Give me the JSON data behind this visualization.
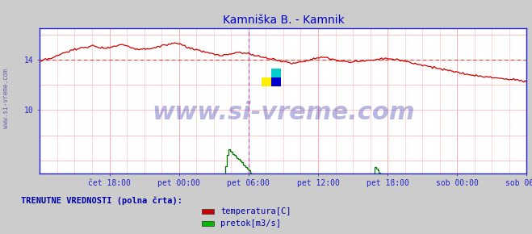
{
  "title": "Kamniška B. - Kamnik",
  "title_color": "#0000cc",
  "bg_color": "#d8d8d8",
  "plot_bg_color": "#ffffff",
  "xlabel_ticks": [
    "čet 18:00",
    "pet 00:00",
    "pet 06:00",
    "pet 12:00",
    "pet 18:00",
    "sob 00:00",
    "sob 06:00"
  ],
  "xtick_positions": [
    48,
    96,
    144,
    192,
    240,
    288,
    336
  ],
  "yticks": [
    10,
    14
  ],
  "ylim": [
    5.0,
    16.5
  ],
  "xlim": [
    0,
    336
  ],
  "hgrid_color": "#ffaaaa",
  "vgrid_color": "#ffcccc",
  "watermark": "www.si-vreme.com",
  "watermark_color": "#3333aa",
  "watermark_alpha": 0.35,
  "sidebar_text": "www.si-vreme.com",
  "sidebar_color": "#6666aa",
  "legend_title": "TRENUTNE VREDNOSTI (polna črta):",
  "legend_title_color": "#0000aa",
  "legend_items": [
    "temperatura[C]",
    "pretok[m3/s]"
  ],
  "legend_colors": [
    "#cc0000",
    "#00bb00"
  ],
  "temp_color": "#cc0000",
  "flow_color": "#007700",
  "temp_hline": 14.0,
  "temp_hline_color": "#dd4444",
  "flow_hline": 2.8,
  "flow_hline_color": "#00bb00",
  "vline1_x": 144,
  "vline2_x": 336,
  "vline_color": "#cc44cc",
  "axis_color": "#2222cc",
  "tick_color": "#2222cc",
  "spine_color": "#2222cc",
  "n_points": 337,
  "temp_data": [
    13.8,
    14.0,
    14.1,
    14.3,
    14.5,
    14.7,
    14.8,
    14.9,
    15.0,
    15.1,
    15.0,
    14.9,
    15.0,
    15.1,
    15.2,
    15.1,
    14.9,
    14.8,
    14.85,
    14.9,
    15.0,
    15.1,
    15.2,
    15.3,
    15.2,
    15.0,
    14.85,
    14.7,
    14.6,
    14.5,
    14.4,
    14.3,
    14.4,
    14.5,
    14.6,
    14.5,
    14.4,
    14.3,
    14.2,
    14.1,
    14.0,
    13.9,
    13.8,
    13.7,
    13.8,
    13.9,
    14.0,
    14.1,
    14.2,
    14.1,
    14.0,
    13.9,
    13.85,
    13.8,
    13.85,
    13.9,
    13.95,
    14.0,
    14.05,
    14.1,
    14.05,
    14.0,
    13.9,
    13.8,
    13.7,
    13.6,
    13.5,
    13.4,
    13.3,
    13.2,
    13.1,
    13.0,
    12.9,
    12.8,
    12.75,
    12.7,
    12.65,
    12.6,
    12.55,
    12.5,
    12.45,
    12.4,
    12.35,
    12.3
  ],
  "flow_data": [
    0.0,
    0.0,
    0.0,
    0.0,
    0.0,
    0.0,
    0.0,
    0.0,
    0.0,
    0.0,
    0.0,
    0.0,
    0.0,
    0.0,
    0.0,
    0.0,
    0.0,
    0.0,
    0.0,
    0.0,
    0.0,
    0.0,
    0.0,
    0.0,
    2.5,
    2.6,
    2.7,
    2.6,
    2.5,
    2.5,
    2.6,
    3.0,
    7.0,
    6.5,
    6.0,
    5.5,
    5.0,
    4.7,
    4.5,
    4.3,
    4.1,
    4.0,
    3.8,
    3.5,
    3.2,
    3.0,
    2.8,
    2.7,
    2.6,
    2.5,
    2.4,
    2.3,
    2.3,
    2.2,
    2.1,
    2.0,
    2.5,
    5.5,
    5.0,
    4.5,
    4.2,
    3.8,
    3.5,
    3.2,
    3.0,
    2.8,
    2.6,
    2.5,
    2.4,
    2.3,
    2.2,
    2.1,
    2.0,
    1.9,
    1.8,
    1.8,
    1.7,
    1.6,
    1.5,
    1.4,
    1.4,
    1.3,
    1.3,
    1.2
  ]
}
